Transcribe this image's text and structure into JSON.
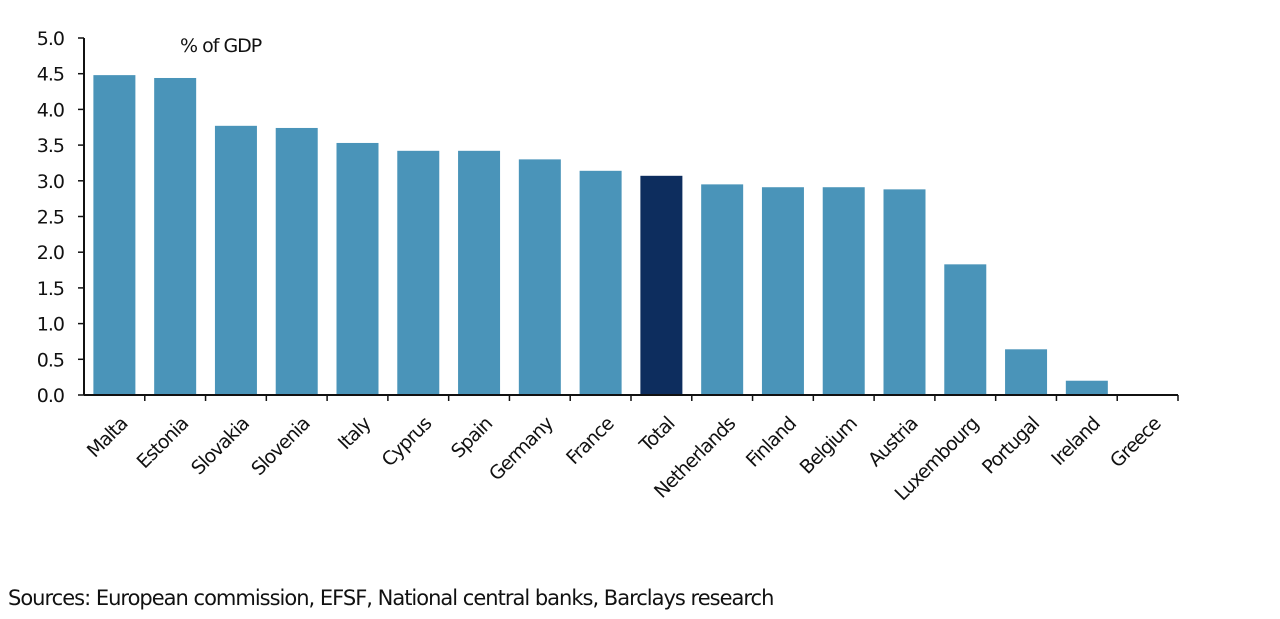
{
  "chart_data": {
    "type": "bar",
    "title": "% of GDP",
    "xlabel": "",
    "ylabel": "",
    "ylim": [
      0,
      5.0
    ],
    "yticks": [
      "0.0",
      "0.5",
      "1.0",
      "1.5",
      "2.0",
      "2.5",
      "3.0",
      "3.5",
      "4.0",
      "4.5",
      "5.0"
    ],
    "grid": false,
    "categories": [
      "Malta",
      "Estonia",
      "Slovakia",
      "Slovenia",
      "Italy",
      "Cyprus",
      "Spain",
      "Germany",
      "France",
      "Total",
      "Netherlands",
      "Finland",
      "Belgium",
      "Austria",
      "Luxembourg",
      "Portugal",
      "Ireland",
      "Greece"
    ],
    "values": [
      4.48,
      4.44,
      3.77,
      3.74,
      3.53,
      3.42,
      3.42,
      3.3,
      3.14,
      3.07,
      2.95,
      2.91,
      2.91,
      2.88,
      1.83,
      0.64,
      0.2,
      0.0
    ],
    "highlight": "Total",
    "colors": {
      "bar": "#4a94b9",
      "highlight": "#0d2d5e",
      "axis": "#111111"
    }
  },
  "source": "Sources: European commission, EFSF, National central banks, Barclays research"
}
